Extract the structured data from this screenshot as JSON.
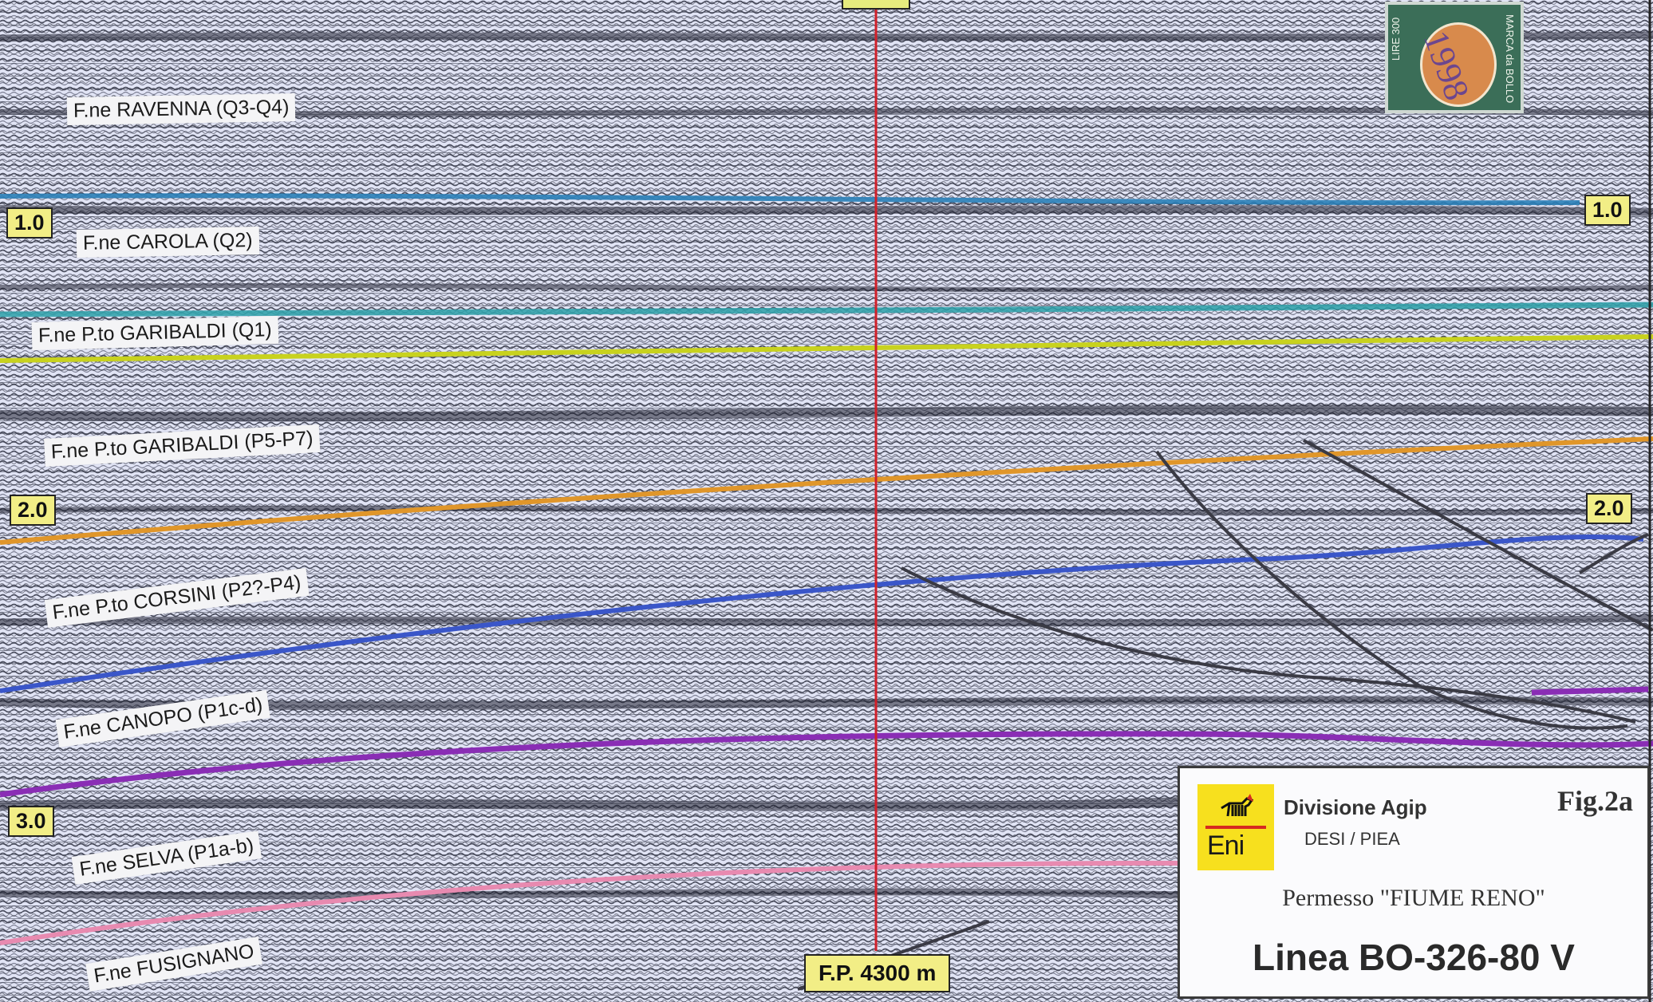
{
  "formations": [
    {
      "key": "ravenna",
      "label": "F.ne RAVENNA (Q3-Q4)"
    },
    {
      "key": "carola",
      "label": "F.ne CAROLA (Q2)"
    },
    {
      "key": "garibaldi_q1",
      "label": "F.ne P.to GARIBALDI (Q1)"
    },
    {
      "key": "garibaldi_p5",
      "label": "F.ne  P.to GARIBALDI (P5-P7)"
    },
    {
      "key": "corsini",
      "label": "F.ne P.to CORSINI (P2?-P4)"
    },
    {
      "key": "canopo",
      "label": "F.ne CANOPO (P1c-d)"
    },
    {
      "key": "selva",
      "label": "F.ne SELVA (P1a-b)"
    },
    {
      "key": "fusignano",
      "label": "F.ne FUSIGNANO"
    }
  ],
  "time_ticks": {
    "t1": "1.0",
    "t2": "2.0",
    "t3": "3.0"
  },
  "fp_label": "F.P. 4300 m",
  "stamp": {
    "left_text": "LIRE 300",
    "right_text": "MARCA da BOLLO",
    "ink_text": "1998"
  },
  "title_block": {
    "division": "Divisione Agip",
    "unit": "DESI / PIEA",
    "logo_text": "Eni",
    "figure": "Fig.2a",
    "permit": "Permesso \"FIUME RENO\"",
    "line": "Linea BO-326-80 V"
  },
  "colors": {
    "ravenna_base": "#2a7fb8",
    "carola_base": "#2aa0a8",
    "garibaldi_q1_base": "#c8d21e",
    "garibaldi_p5_base": "#e0962a",
    "corsini_base": "#3a56c9",
    "canopo_base": "#8a2db5",
    "selva_base": "#e88ab0",
    "fault": "#3a3a44",
    "well": "#d0202a"
  }
}
